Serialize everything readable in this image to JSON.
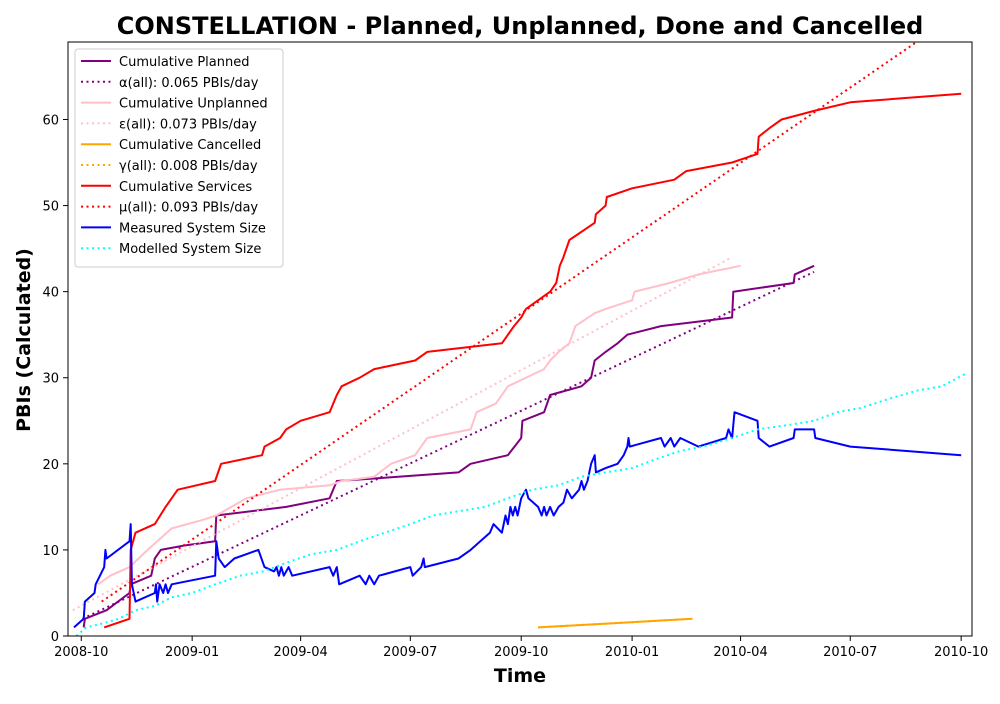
{
  "chart_data": {
    "type": "line",
    "title": "CONSTELLATION - Planned, Unplanned, Done  and Cancelled",
    "xlabel": "Time",
    "ylabel": "PBIs (Calculated)",
    "xlim": [
      "2008-09-20",
      "2010-10-10"
    ],
    "ylim": [
      0,
      69
    ],
    "x_ticks": [
      "2008-10",
      "2009-01",
      "2009-04",
      "2009-07",
      "2009-10",
      "2010-01",
      "2010-04",
      "2010-07",
      "2010-10"
    ],
    "y_ticks": [
      0,
      10,
      20,
      30,
      40,
      50,
      60
    ],
    "grid": false,
    "legend_position": "upper-left",
    "series": [
      {
        "name": "Cumulative Planned",
        "color": "#800080",
        "style": "solid",
        "points": [
          [
            "2008-10-03",
            1
          ],
          [
            "2008-10-04",
            2
          ],
          [
            "2008-10-22",
            3
          ],
          [
            "2008-11-10",
            5
          ],
          [
            "2008-11-11",
            6
          ],
          [
            "2008-11-28",
            7
          ],
          [
            "2008-12-01",
            9
          ],
          [
            "2008-12-06",
            10
          ],
          [
            "2008-12-25",
            10.5
          ],
          [
            "2009-01-20",
            11
          ],
          [
            "2009-01-21",
            14
          ],
          [
            "2009-03-20",
            15
          ],
          [
            "2009-04-25",
            16
          ],
          [
            "2009-05-01",
            18
          ],
          [
            "2009-06-01",
            18.3
          ],
          [
            "2009-08-10",
            19
          ],
          [
            "2009-08-20",
            20
          ],
          [
            "2009-09-20",
            21
          ],
          [
            "2009-10-01",
            23
          ],
          [
            "2009-10-02",
            25
          ],
          [
            "2009-10-20",
            26
          ],
          [
            "2009-10-25",
            28
          ],
          [
            "2009-11-20",
            29
          ],
          [
            "2009-11-28",
            30
          ],
          [
            "2009-12-01",
            32
          ],
          [
            "2009-12-10",
            33
          ],
          [
            "2009-12-20",
            34
          ],
          [
            "2009-12-28",
            35
          ],
          [
            "2010-01-25",
            36
          ],
          [
            "2010-03-25",
            37
          ],
          [
            "2010-03-26",
            40
          ],
          [
            "2010-05-15",
            41
          ],
          [
            "2010-05-16",
            42
          ],
          [
            "2010-06-01",
            43
          ]
        ]
      },
      {
        "name": "α(all): 0.065 PBIs/day",
        "color": "#800080",
        "style": "dotted",
        "points": [
          [
            "2008-10-02",
            2
          ],
          [
            "2010-06-01",
            42.3
          ]
        ]
      },
      {
        "name": "Cumulative Unplanned",
        "color": "#ffc0cb",
        "style": "solid",
        "points": [
          [
            "2008-10-15",
            6
          ],
          [
            "2008-10-25",
            7
          ],
          [
            "2008-11-10",
            8
          ],
          [
            "2008-11-25",
            10
          ],
          [
            "2008-12-15",
            12.5
          ],
          [
            "2009-01-10",
            13.5
          ],
          [
            "2009-01-21",
            14
          ],
          [
            "2009-02-15",
            16
          ],
          [
            "2009-03-15",
            17
          ],
          [
            "2009-04-25",
            17.5
          ],
          [
            "2009-05-05",
            18
          ],
          [
            "2009-06-01",
            18.5
          ],
          [
            "2009-06-15",
            20
          ],
          [
            "2009-07-05",
            21
          ],
          [
            "2009-07-15",
            23
          ],
          [
            "2009-08-20",
            24
          ],
          [
            "2009-08-25",
            26
          ],
          [
            "2009-09-10",
            27
          ],
          [
            "2009-09-20",
            29
          ],
          [
            "2009-10-20",
            31
          ],
          [
            "2009-10-25",
            32
          ],
          [
            "2009-11-01",
            33
          ],
          [
            "2009-11-10",
            34
          ],
          [
            "2009-11-15",
            36
          ],
          [
            "2009-12-01",
            37.5
          ],
          [
            "2009-12-10",
            38
          ],
          [
            "2010-01-01",
            39
          ],
          [
            "2010-01-03",
            40
          ],
          [
            "2010-02-01",
            41
          ],
          [
            "2010-02-25",
            42
          ],
          [
            "2010-04-01",
            43
          ]
        ]
      },
      {
        "name": "ε(all): 0.073 PBIs/day",
        "color": "#ffc0cb",
        "style": "dotted",
        "points": [
          [
            "2008-09-24",
            3
          ],
          [
            "2010-03-25",
            44
          ]
        ]
      },
      {
        "name": "Cumulative Cancelled",
        "color": "#ffa500",
        "style": "solid",
        "points": [
          [
            "2009-10-15",
            1
          ],
          [
            "2010-02-20",
            2
          ]
        ]
      },
      {
        "name": "γ(all): 0.008 PBIs/day",
        "color": "#ffa500",
        "style": "dotted",
        "points": [
          [
            "2009-10-15",
            1
          ],
          [
            "2010-02-20",
            2
          ]
        ]
      },
      {
        "name": "Cumulative Services",
        "color": "#ff0000",
        "style": "solid",
        "points": [
          [
            "2008-10-20",
            1
          ],
          [
            "2008-11-10",
            2
          ],
          [
            "2008-11-11",
            10
          ],
          [
            "2008-11-15",
            12
          ],
          [
            "2008-12-01",
            13
          ],
          [
            "2008-12-10",
            15
          ],
          [
            "2008-12-20",
            17
          ],
          [
            "2009-01-20",
            18
          ],
          [
            "2009-01-25",
            20
          ],
          [
            "2009-02-28",
            21
          ],
          [
            "2009-03-02",
            22
          ],
          [
            "2009-03-15",
            23
          ],
          [
            "2009-03-20",
            24
          ],
          [
            "2009-04-01",
            25
          ],
          [
            "2009-04-25",
            26
          ],
          [
            "2009-05-01",
            28
          ],
          [
            "2009-05-05",
            29
          ],
          [
            "2009-05-20",
            30
          ],
          [
            "2009-06-01",
            31
          ],
          [
            "2009-07-05",
            32
          ],
          [
            "2009-07-15",
            33
          ],
          [
            "2009-09-15",
            34
          ],
          [
            "2009-09-25",
            36
          ],
          [
            "2009-10-01",
            37
          ],
          [
            "2009-10-05",
            38
          ],
          [
            "2009-10-25",
            40
          ],
          [
            "2009-10-30",
            41
          ],
          [
            "2009-11-02",
            43
          ],
          [
            "2009-11-05",
            44
          ],
          [
            "2009-11-10",
            46
          ],
          [
            "2009-12-01",
            48
          ],
          [
            "2009-12-02",
            49
          ],
          [
            "2009-12-10",
            50
          ],
          [
            "2009-12-11",
            51
          ],
          [
            "2010-01-01",
            52
          ],
          [
            "2010-02-05",
            53
          ],
          [
            "2010-02-15",
            54
          ],
          [
            "2010-03-25",
            55
          ],
          [
            "2010-04-15",
            56
          ],
          [
            "2010-04-16",
            58
          ],
          [
            "2010-04-25",
            59
          ],
          [
            "2010-05-05",
            60
          ],
          [
            "2010-06-01",
            61
          ],
          [
            "2010-07-01",
            62
          ],
          [
            "2010-10-01",
            63
          ]
        ]
      },
      {
        "name": "μ(all): 0.093 PBIs/day",
        "color": "#ff0000",
        "style": "dotted",
        "points": [
          [
            "2008-10-18",
            4
          ],
          [
            "2010-08-25",
            69
          ]
        ]
      },
      {
        "name": "Measured System Size",
        "color": "#0000ff",
        "style": "solid",
        "points": [
          [
            "2008-09-25",
            1
          ],
          [
            "2008-10-03",
            2
          ],
          [
            "2008-10-04",
            4
          ],
          [
            "2008-10-12",
            5
          ],
          [
            "2008-10-13",
            6
          ],
          [
            "2008-10-20",
            8
          ],
          [
            "2008-10-21",
            10
          ],
          [
            "2008-10-22",
            9
          ],
          [
            "2008-11-10",
            11
          ],
          [
            "2008-11-11",
            13
          ],
          [
            "2008-11-12",
            6
          ],
          [
            "2008-11-15",
            4
          ],
          [
            "2008-12-01",
            5
          ],
          [
            "2008-12-02",
            6
          ],
          [
            "2008-12-03",
            4
          ],
          [
            "2008-12-05",
            6
          ],
          [
            "2008-12-08",
            5
          ],
          [
            "2008-12-10",
            6
          ],
          [
            "2008-12-12",
            5
          ],
          [
            "2008-12-15",
            6
          ],
          [
            "2009-01-20",
            7
          ],
          [
            "2009-01-21",
            11
          ],
          [
            "2009-01-23",
            9
          ],
          [
            "2009-01-28",
            8
          ],
          [
            "2009-02-05",
            9
          ],
          [
            "2009-02-15",
            9.5
          ],
          [
            "2009-02-25",
            10
          ],
          [
            "2009-03-02",
            8
          ],
          [
            "2009-03-10",
            7.5
          ],
          [
            "2009-03-12",
            8
          ],
          [
            "2009-03-14",
            7
          ],
          [
            "2009-03-16",
            8
          ],
          [
            "2009-03-18",
            7
          ],
          [
            "2009-03-20",
            7.5
          ],
          [
            "2009-03-22",
            8
          ],
          [
            "2009-03-25",
            7
          ],
          [
            "2009-04-25",
            8
          ],
          [
            "2009-04-28",
            7
          ],
          [
            "2009-05-01",
            8
          ],
          [
            "2009-05-03",
            6
          ],
          [
            "2009-05-20",
            7
          ],
          [
            "2009-05-25",
            6
          ],
          [
            "2009-05-28",
            7
          ],
          [
            "2009-06-01",
            6
          ],
          [
            "2009-06-05",
            7
          ],
          [
            "2009-07-01",
            8
          ],
          [
            "2009-07-03",
            7
          ],
          [
            "2009-07-10",
            8
          ],
          [
            "2009-07-12",
            9
          ],
          [
            "2009-07-13",
            8
          ],
          [
            "2009-08-10",
            9
          ],
          [
            "2009-08-20",
            10
          ],
          [
            "2009-09-05",
            12
          ],
          [
            "2009-09-08",
            13
          ],
          [
            "2009-09-15",
            12
          ],
          [
            "2009-09-18",
            14
          ],
          [
            "2009-09-20",
            13
          ],
          [
            "2009-09-22",
            15
          ],
          [
            "2009-09-24",
            14
          ],
          [
            "2009-09-26",
            15
          ],
          [
            "2009-09-28",
            14
          ],
          [
            "2009-10-01",
            16
          ],
          [
            "2009-10-05",
            17
          ],
          [
            "2009-10-07",
            16
          ],
          [
            "2009-10-15",
            15
          ],
          [
            "2009-10-18",
            14
          ],
          [
            "2009-10-20",
            15
          ],
          [
            "2009-10-22",
            14
          ],
          [
            "2009-10-25",
            15
          ],
          [
            "2009-10-28",
            14
          ],
          [
            "2009-11-01",
            15
          ],
          [
            "2009-11-05",
            15.5
          ],
          [
            "2009-11-08",
            17
          ],
          [
            "2009-11-12",
            16
          ],
          [
            "2009-11-18",
            17
          ],
          [
            "2009-11-20",
            18
          ],
          [
            "2009-11-22",
            17
          ],
          [
            "2009-11-25",
            18
          ],
          [
            "2009-11-28",
            20
          ],
          [
            "2009-12-01",
            21
          ],
          [
            "2009-12-02",
            19
          ],
          [
            "2009-12-10",
            19.5
          ],
          [
            "2009-12-20",
            20
          ],
          [
            "2009-12-25",
            21
          ],
          [
            "2009-12-28",
            22
          ],
          [
            "2009-12-29",
            23
          ],
          [
            "2009-12-30",
            22
          ],
          [
            "2010-01-25",
            23
          ],
          [
            "2010-01-28",
            22
          ],
          [
            "2010-02-02",
            23
          ],
          [
            "2010-02-05",
            22
          ],
          [
            "2010-02-10",
            23
          ],
          [
            "2010-02-25",
            22
          ],
          [
            "2010-03-20",
            23
          ],
          [
            "2010-03-22",
            24
          ],
          [
            "2010-03-25",
            23
          ],
          [
            "2010-03-27",
            26
          ],
          [
            "2010-04-15",
            25
          ],
          [
            "2010-04-16",
            23
          ],
          [
            "2010-04-25",
            22
          ],
          [
            "2010-05-15",
            23
          ],
          [
            "2010-05-16",
            24
          ],
          [
            "2010-06-01",
            24
          ],
          [
            "2010-06-02",
            23
          ],
          [
            "2010-07-01",
            22
          ],
          [
            "2010-10-01",
            21
          ]
        ]
      },
      {
        "name": "Modelled System Size",
        "color": "#00ffff",
        "style": "dotted",
        "points": [
          [
            "2008-09-27",
            0
          ],
          [
            "2008-10-05",
            1
          ],
          [
            "2008-10-20",
            1.5
          ],
          [
            "2008-11-01",
            2
          ],
          [
            "2008-11-15",
            3
          ],
          [
            "2008-12-01",
            3.5
          ],
          [
            "2008-12-15",
            4.5
          ],
          [
            "2009-01-01",
            5
          ],
          [
            "2009-01-20",
            6
          ],
          [
            "2009-02-10",
            7
          ],
          [
            "2009-03-01",
            7.5
          ],
          [
            "2009-03-20",
            8.5
          ],
          [
            "2009-04-10",
            9.5
          ],
          [
            "2009-05-01",
            10
          ],
          [
            "2009-05-20",
            11
          ],
          [
            "2009-06-10",
            12
          ],
          [
            "2009-07-01",
            13
          ],
          [
            "2009-07-20",
            14
          ],
          [
            "2009-08-10",
            14.5
          ],
          [
            "2009-09-01",
            15
          ],
          [
            "2009-09-20",
            16
          ],
          [
            "2009-10-10",
            17
          ],
          [
            "2009-11-01",
            17.5
          ],
          [
            "2009-11-20",
            18.5
          ],
          [
            "2009-12-10",
            19
          ],
          [
            "2010-01-01",
            19.5
          ],
          [
            "2010-01-20",
            20.5
          ],
          [
            "2010-02-10",
            21.5
          ],
          [
            "2010-03-01",
            22
          ],
          [
            "2010-03-25",
            23
          ],
          [
            "2010-04-15",
            24
          ],
          [
            "2010-05-10",
            24.5
          ],
          [
            "2010-06-01",
            25
          ],
          [
            "2010-06-20",
            26
          ],
          [
            "2010-07-10",
            26.5
          ],
          [
            "2010-08-01",
            27.5
          ],
          [
            "2010-08-25",
            28.5
          ],
          [
            "2010-09-15",
            29
          ],
          [
            "2010-10-05",
            30.5
          ]
        ]
      }
    ]
  }
}
